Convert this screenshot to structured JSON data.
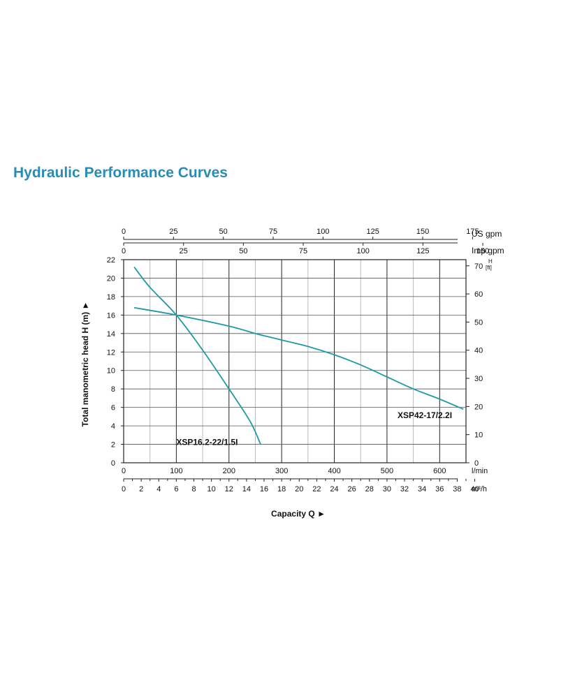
{
  "title": "Hydraulic Performance Curves",
  "colors": {
    "curve": "#1f9aa3",
    "title": "#2a8cb4",
    "grid_major": "#222222",
    "grid_minor": "#bbbbbb"
  },
  "chart_data": {
    "type": "line",
    "ylabel": "Total manometric head H (m)",
    "xlabel": "Capacity Q",
    "arrow_glyph": "►",
    "xlim_lmin": [
      0,
      650
    ],
    "ylim_m": [
      0,
      22
    ],
    "y_ticks": [
      "0",
      "2",
      "4",
      "6",
      "8",
      "10",
      "12",
      "14",
      "16",
      "18",
      "20",
      "22"
    ],
    "y_ticks_values": [
      0,
      2,
      4,
      6,
      8,
      10,
      12,
      14,
      16,
      18,
      20,
      22
    ],
    "y2_unit_top": "H",
    "y2_unit_bottom": "[ft]",
    "y2_ticks": [
      "0",
      "10",
      "20",
      "30",
      "40",
      "50",
      "60",
      "70"
    ],
    "y2_ticks_values": [
      0,
      10,
      20,
      30,
      40,
      50,
      60,
      70
    ],
    "x_lmin_unit": "l/min",
    "x_lmin_ticks": [
      "0",
      "100",
      "200",
      "300",
      "400",
      "500",
      "600"
    ],
    "x_lmin_values": [
      0,
      100,
      200,
      300,
      400,
      500,
      600
    ],
    "x_m3h_unit": "m³/h",
    "x_m3h_ticks": [
      "0",
      "2",
      "4",
      "6",
      "8",
      "10",
      "12",
      "14",
      "16",
      "18",
      "20",
      "22",
      "24",
      "26",
      "28",
      "30",
      "32",
      "34",
      "36",
      "38",
      "40"
    ],
    "x_m3h_values": [
      0,
      2,
      4,
      6,
      8,
      10,
      12,
      14,
      16,
      18,
      20,
      22,
      24,
      26,
      28,
      30,
      32,
      34,
      36,
      38,
      40
    ],
    "x_usgpm_unit": "US gpm",
    "x_usgpm_ticks": [
      "0",
      "25",
      "50",
      "75",
      "100",
      "125",
      "150",
      "175"
    ],
    "x_usgpm_values": [
      0,
      25,
      50,
      75,
      100,
      125,
      150,
      175
    ],
    "x_impgpm_unit": "Imp gpm",
    "x_impgpm_ticks": [
      "0",
      "25",
      "50",
      "75",
      "100",
      "125",
      "150"
    ],
    "x_impgpm_values": [
      0,
      25,
      50,
      75,
      100,
      125,
      150
    ],
    "series": [
      {
        "name": "XSP16.2-22/1.5I",
        "x_lmin": [
          20,
          50,
          100,
          150,
          200,
          240,
          260
        ],
        "y_m": [
          21.2,
          19.0,
          16.0,
          12.2,
          8.0,
          4.5,
          2.0
        ]
      },
      {
        "name": "XSP42-17/2.2I",
        "x_lmin": [
          20,
          100,
          200,
          250,
          300,
          350,
          400,
          450,
          500,
          550,
          600,
          645
        ],
        "y_m": [
          16.8,
          16.0,
          14.8,
          14.0,
          13.3,
          12.6,
          11.7,
          10.6,
          9.3,
          8.0,
          6.9,
          5.8
        ]
      }
    ]
  }
}
